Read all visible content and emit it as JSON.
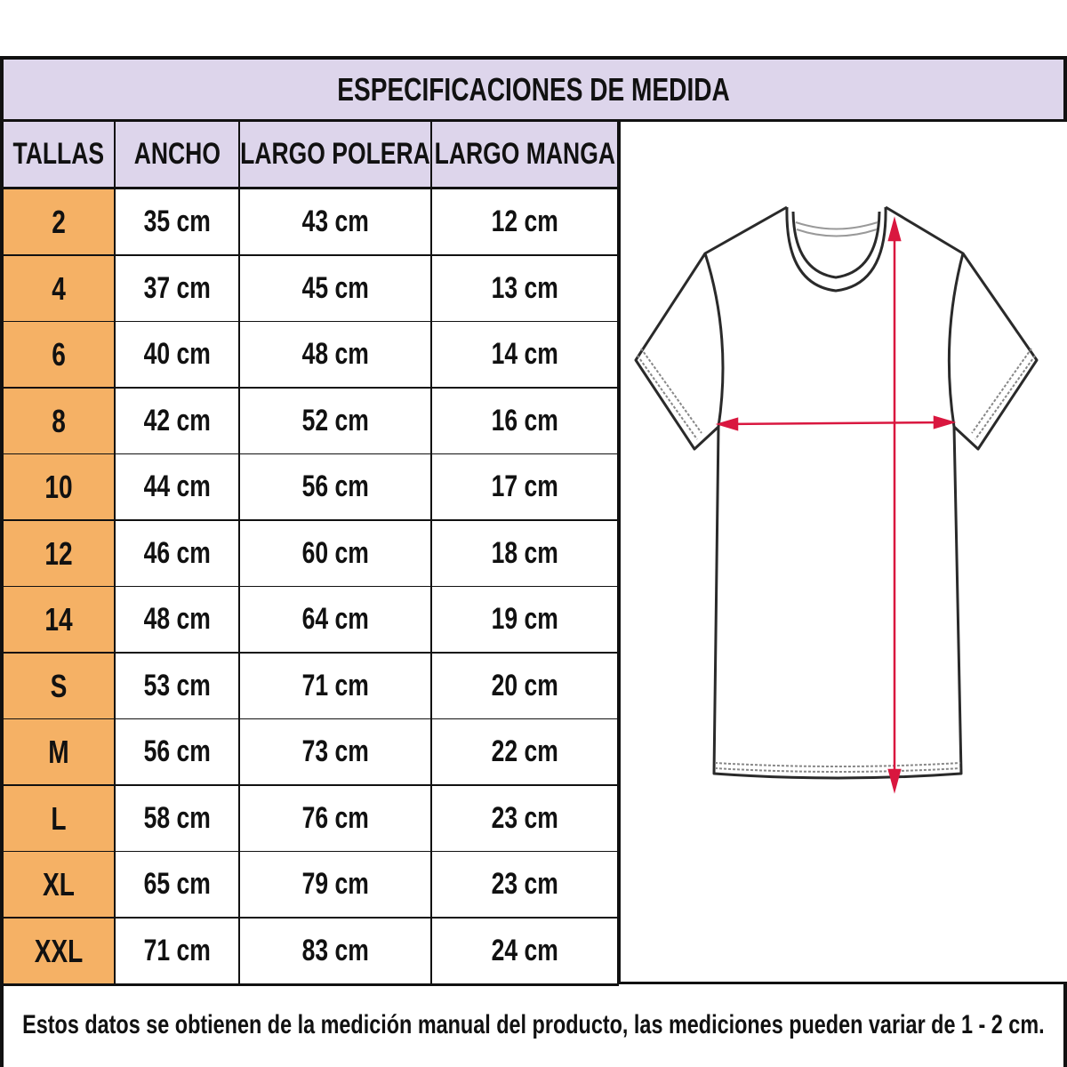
{
  "title": "ESPECIFICACIONES DE MEDIDA",
  "columns": [
    "TALLAS",
    "ANCHO",
    "LARGO POLERA",
    "LARGO MANGA"
  ],
  "rows": [
    [
      "2",
      "35 cm",
      "43 cm",
      "12 cm"
    ],
    [
      "4",
      "37 cm",
      "45 cm",
      "13 cm"
    ],
    [
      "6",
      "40 cm",
      "48 cm",
      "14 cm"
    ],
    [
      "8",
      "42 cm",
      "52 cm",
      "16 cm"
    ],
    [
      "10",
      "44 cm",
      "56 cm",
      "17 cm"
    ],
    [
      "12",
      "46 cm",
      "60 cm",
      "18 cm"
    ],
    [
      "14",
      "48 cm",
      "64 cm",
      "19 cm"
    ],
    [
      "S",
      "53 cm",
      "71 cm",
      "20 cm"
    ],
    [
      "M",
      "56 cm",
      "73 cm",
      "22 cm"
    ],
    [
      "L",
      "58 cm",
      "76 cm",
      "23 cm"
    ],
    [
      "XL",
      "65 cm",
      "79 cm",
      "23 cm"
    ],
    [
      "XXL",
      "71 cm",
      "83 cm",
      "24 cm"
    ]
  ],
  "footer": "Estos datos se obtienen de la medición manual del producto, las mediciones pueden variar de 1 - 2 cm.",
  "image": {
    "icon": "tshirt-measurement-diagram",
    "arrow_color": "#d9173f"
  },
  "colors": {
    "header_bg": "#ddd5eb",
    "size_bg": "#f5b165",
    "border": "#111111"
  }
}
